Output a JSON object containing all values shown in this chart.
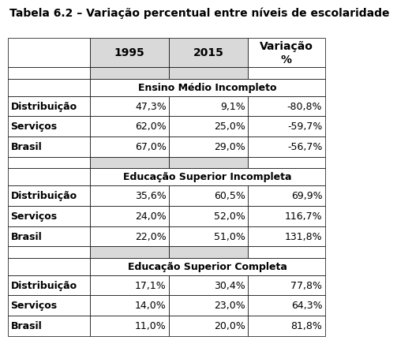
{
  "title": "Tabela 6.2 – Variação percentual entre níveis de escolaridade",
  "col_headers": [
    "1995",
    "2015",
    "Variação\n%"
  ],
  "section1_title": "Ensino Médio Incompleto",
  "section2_title": "Educação Superior Incompleta",
  "section3_title": "Educação Superior Completa",
  "row_labels": [
    "Distribuição",
    "Serviços",
    "Brasil"
  ],
  "section1_data": [
    [
      "47,3%",
      "9,1%",
      "-80,8%"
    ],
    [
      "62,0%",
      "25,0%",
      "-59,7%"
    ],
    [
      "67,0%",
      "29,0%",
      "-56,7%"
    ]
  ],
  "section2_data": [
    [
      "35,6%",
      "60,5%",
      "69,9%"
    ],
    [
      "24,0%",
      "52,0%",
      "116,7%"
    ],
    [
      "22,0%",
      "51,0%",
      "131,8%"
    ]
  ],
  "section3_data": [
    [
      "17,1%",
      "30,4%",
      "77,8%"
    ],
    [
      "14,0%",
      "23,0%",
      "64,3%"
    ],
    [
      "11,0%",
      "20,0%",
      "81,8%"
    ]
  ],
  "header_bg": "#d9d9d9",
  "font_size": 9,
  "title_font_size": 10
}
